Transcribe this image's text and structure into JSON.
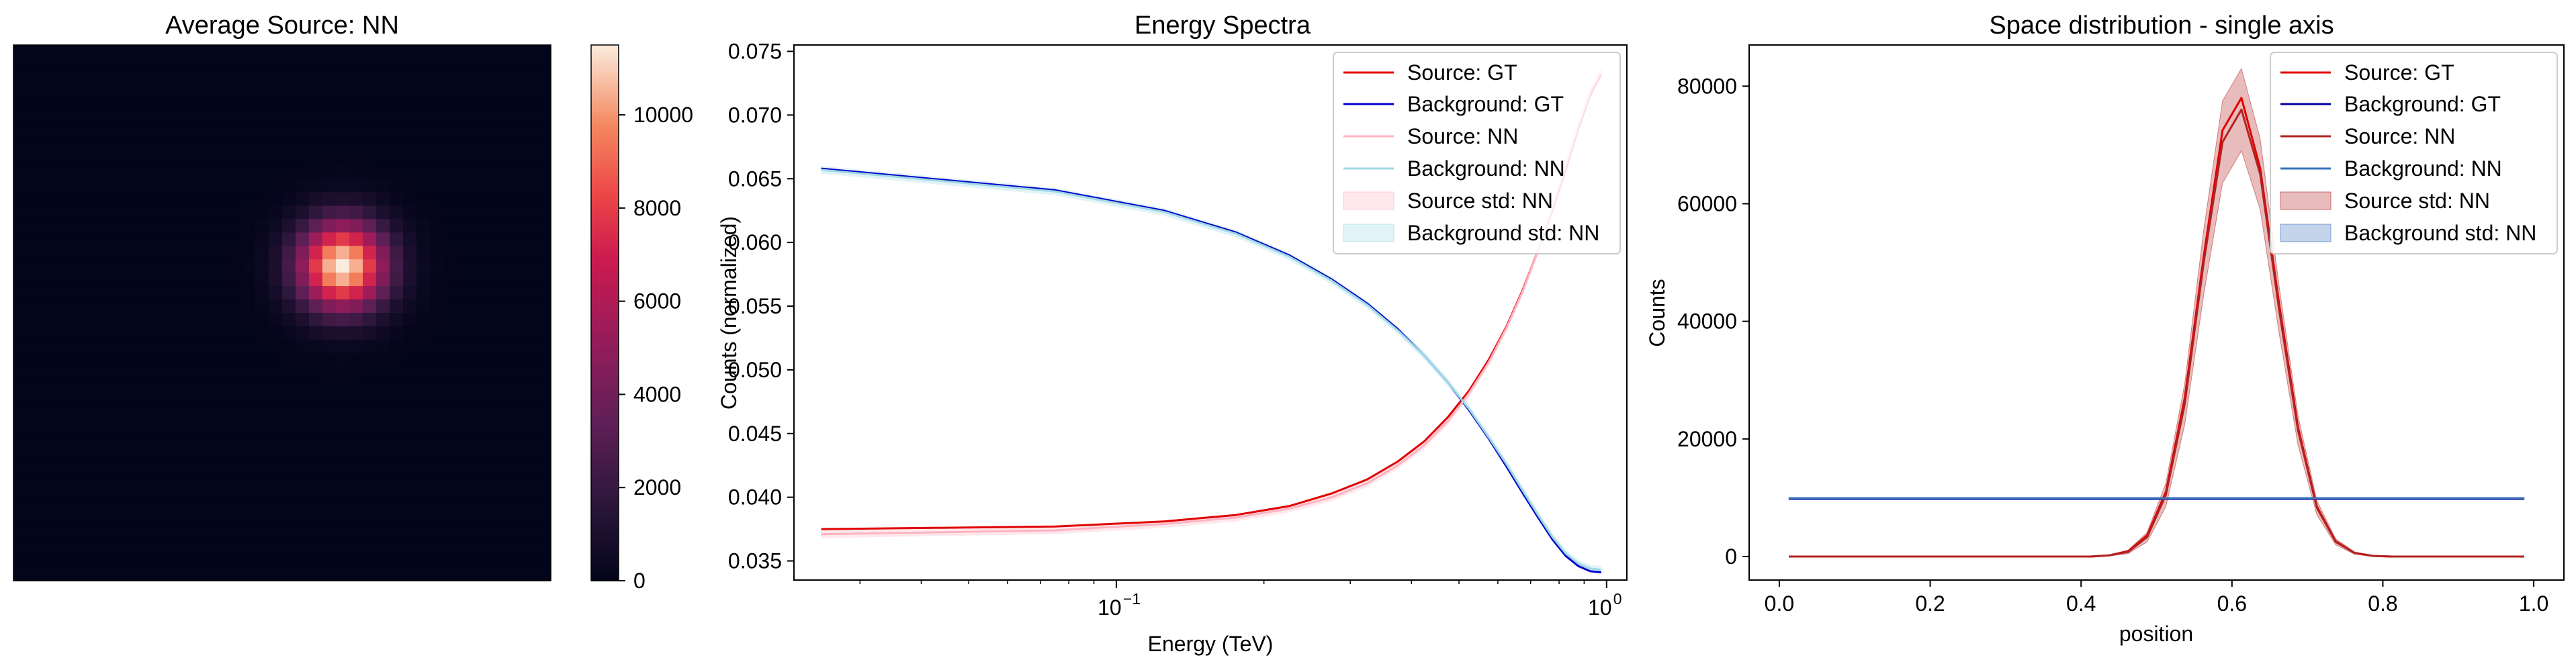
{
  "chart_data": [
    {
      "type": "heatmap",
      "title": "Average Source: NN",
      "grid_size": 40,
      "peak": {
        "col": 24,
        "row": 16
      },
      "sigma_cells": 2.3,
      "max_value": 11500,
      "colorbar": {
        "ticks": [
          0,
          2000,
          4000,
          6000,
          8000,
          10000
        ],
        "range": [
          0,
          11500
        ],
        "colormap": "rocket"
      }
    },
    {
      "type": "line",
      "title": "Energy Spectra",
      "xlabel": "Energy (TeV)",
      "ylabel": "Counts (normalized)",
      "xscale": "log",
      "xlim": [
        0.022,
        1.1
      ],
      "ylim": [
        0.0335,
        0.0755
      ],
      "xticks": [
        {
          "value": 0.1,
          "label": "10",
          "sup": "−1"
        },
        {
          "value": 1,
          "label": "10",
          "sup": "0"
        }
      ],
      "yticks": [
        0.035,
        0.04,
        0.045,
        0.05,
        0.055,
        0.06,
        0.065,
        0.07,
        0.075
      ],
      "ytick_labels": [
        "0.035",
        "0.040",
        "0.045",
        "0.050",
        "0.055",
        "0.060",
        "0.065",
        "0.070",
        "0.075"
      ],
      "legend_position": "top-right",
      "x": [
        0.025,
        0.075,
        0.125,
        0.175,
        0.225,
        0.275,
        0.325,
        0.375,
        0.425,
        0.475,
        0.525,
        0.575,
        0.625,
        0.675,
        0.725,
        0.775,
        0.825,
        0.875,
        0.925,
        0.975
      ],
      "series": [
        {
          "name": "Source: GT",
          "color": "#e00000",
          "width": 3,
          "values": [
            0.0375,
            0.0377,
            0.0381,
            0.0386,
            0.0393,
            0.0403,
            0.0414,
            0.0428,
            0.0444,
            0.0463,
            0.0484,
            0.0508,
            0.0534,
            0.0563,
            0.0594,
            0.0625,
            0.0657,
            0.0689,
            0.0715,
            0.0732
          ]
        },
        {
          "name": "Background: GT",
          "color": "#0000c8",
          "width": 3,
          "values": [
            0.0658,
            0.0641,
            0.0625,
            0.0608,
            0.059,
            0.0571,
            0.0552,
            0.0532,
            0.0511,
            0.049,
            0.0468,
            0.0446,
            0.0424,
            0.0403,
            0.0384,
            0.0367,
            0.0354,
            0.0346,
            0.0342,
            0.0341
          ]
        },
        {
          "name": "Source: NN",
          "color": "#ffb3c1",
          "width": 3,
          "values": [
            0.0371,
            0.0374,
            0.0379,
            0.0384,
            0.0391,
            0.04,
            0.0411,
            0.0425,
            0.0441,
            0.046,
            0.0482,
            0.0506,
            0.0533,
            0.0562,
            0.0594,
            0.0627,
            0.066,
            0.0692,
            0.0718,
            0.0735
          ]
        },
        {
          "name": "Background: NN",
          "color": "#9ed8e6",
          "width": 3,
          "values": [
            0.0657,
            0.064,
            0.0624,
            0.0607,
            0.0589,
            0.057,
            0.0551,
            0.0531,
            0.0511,
            0.049,
            0.0469,
            0.0447,
            0.0426,
            0.0405,
            0.0386,
            0.0369,
            0.0356,
            0.0348,
            0.0344,
            0.0343
          ]
        }
      ],
      "bands": [
        {
          "name": "Source std: NN",
          "color": "#ffb3c1",
          "opacity": 0.3,
          "halfwidth": 0.0003
        },
        {
          "name": "Background std: NN",
          "color": "#9ed8e6",
          "opacity": 0.3,
          "halfwidth": 0.0003
        }
      ]
    },
    {
      "type": "line",
      "title": "Space distribution - single axis",
      "xlabel": "position",
      "ylabel": "Counts",
      "xlim": [
        -0.04,
        1.04
      ],
      "ylim": [
        -4000,
        87000
      ],
      "xticks": [
        0,
        0.2,
        0.4,
        0.6,
        0.8,
        1.0
      ],
      "xtick_labels": [
        "0.0",
        "0.2",
        "0.4",
        "0.6",
        "0.8",
        "1.0"
      ],
      "yticks": [
        0,
        20000,
        40000,
        60000,
        80000
      ],
      "legend_position": "top-right",
      "x": [
        0.0125,
        0.0375,
        0.0625,
        0.0875,
        0.1125,
        0.1375,
        0.1625,
        0.1875,
        0.2125,
        0.2375,
        0.2625,
        0.2875,
        0.3125,
        0.3375,
        0.3625,
        0.3875,
        0.4125,
        0.4375,
        0.4625,
        0.4875,
        0.5125,
        0.5375,
        0.5625,
        0.5875,
        0.6125,
        0.6375,
        0.6625,
        0.6875,
        0.7125,
        0.7375,
        0.7625,
        0.7875,
        0.8125,
        0.8375,
        0.8625,
        0.8875,
        0.9125,
        0.9375,
        0.9625,
        0.9875
      ],
      "series": [
        {
          "name": "Source: GT",
          "color": "#e00000",
          "width": 3,
          "values": [
            0,
            0,
            0,
            0,
            0,
            0,
            0,
            0,
            0,
            0,
            0,
            0,
            0,
            0,
            0,
            0,
            0,
            200,
            900,
            3600,
            11000,
            27000,
            51000,
            72500,
            78000,
            66000,
            43000,
            22000,
            8500,
            2600,
            600,
            100,
            0,
            0,
            0,
            0,
            0,
            0,
            0,
            0
          ]
        },
        {
          "name": "Background: GT",
          "color": "#0000a0",
          "width": 3,
          "values": [
            9800,
            9800,
            9800,
            9800,
            9800,
            9800,
            9800,
            9800,
            9800,
            9800,
            9800,
            9800,
            9800,
            9800,
            9800,
            9800,
            9800,
            9800,
            9800,
            9800,
            9800,
            9800,
            9800,
            9800,
            9800,
            9800,
            9800,
            9800,
            9800,
            9800,
            9800,
            9800,
            9800,
            9800,
            9800,
            9800,
            9800,
            9800,
            9800,
            9800
          ]
        },
        {
          "name": "Source: NN",
          "color": "#b22222",
          "width": 3,
          "values": [
            0,
            0,
            0,
            0,
            0,
            0,
            0,
            0,
            0,
            0,
            0,
            0,
            0,
            0,
            0,
            0,
            0,
            200,
            800,
            3300,
            10500,
            26000,
            50000,
            70500,
            76000,
            65000,
            42000,
            21500,
            8300,
            2500,
            600,
            100,
            0,
            0,
            0,
            0,
            0,
            0,
            0,
            0
          ]
        },
        {
          "name": "Background: NN",
          "color": "#3a72b8",
          "width": 3,
          "values": [
            9900,
            9900,
            9900,
            9900,
            9900,
            9900,
            9900,
            9900,
            9900,
            9900,
            9900,
            9900,
            9900,
            9900,
            9900,
            9900,
            9900,
            9900,
            9900,
            9900,
            9900,
            9900,
            9900,
            9900,
            9900,
            9900,
            9900,
            9900,
            9900,
            9900,
            9900,
            9900,
            9900,
            9900,
            9900,
            9900,
            9900,
            9900,
            9900,
            9900
          ]
        }
      ],
      "bands": [
        {
          "name": "Source std: NN",
          "color": "#b22222",
          "opacity": 0.3,
          "upper": [
            0,
            0,
            0,
            0,
            0,
            0,
            0,
            0,
            0,
            0,
            0,
            0,
            0,
            0,
            0,
            0,
            0,
            300,
            1100,
            4100,
            12500,
            29500,
            55500,
            77500,
            83000,
            71000,
            46000,
            24000,
            9500,
            3000,
            800,
            200,
            0,
            0,
            0,
            0,
            0,
            0,
            0,
            0
          ],
          "lower": [
            0,
            0,
            0,
            0,
            0,
            0,
            0,
            0,
            0,
            0,
            0,
            0,
            0,
            0,
            0,
            0,
            0,
            100,
            500,
            2500,
            8500,
            22500,
            44500,
            63500,
            69000,
            59000,
            38000,
            19000,
            7100,
            2000,
            400,
            0,
            0,
            0,
            0,
            0,
            0,
            0,
            0,
            0
          ]
        },
        {
          "name": "Background std: NN",
          "color": "#3a72b8",
          "opacity": 0.3,
          "halfwidth": 150
        }
      ]
    }
  ]
}
